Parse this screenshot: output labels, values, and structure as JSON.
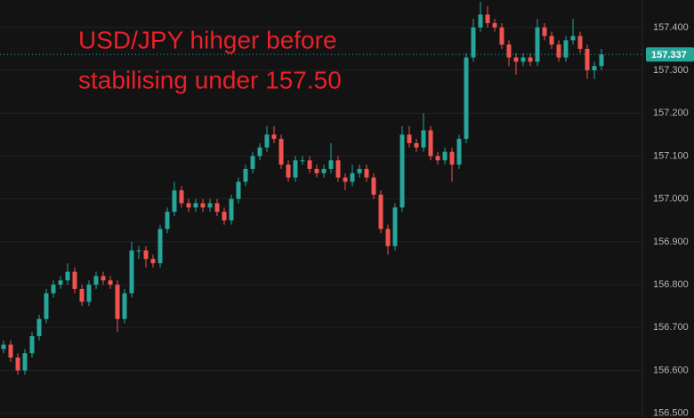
{
  "chart_data": {
    "type": "candlestick",
    "annotation_lines": [
      "USD/JPY hihger before",
      "stabilising under 157.50"
    ],
    "up_color": "#26a69a",
    "down_color": "#ef5350",
    "grid": true,
    "ylim": [
      156.489,
      157.464
    ],
    "yticks": [
      {
        "value": 156.5,
        "label": "156.500"
      },
      {
        "value": 156.6,
        "label": "156.600"
      },
      {
        "value": 156.7,
        "label": "156.700"
      },
      {
        "value": 156.8,
        "label": "156.800"
      },
      {
        "value": 156.9,
        "label": "156.900"
      },
      {
        "value": 157.0,
        "label": "157.000"
      },
      {
        "value": 157.1,
        "label": "157.100"
      },
      {
        "value": 157.2,
        "label": "157.200"
      },
      {
        "value": 157.3,
        "label": "157.300"
      },
      {
        "value": 157.4,
        "label": "157.400"
      }
    ],
    "open": [
      156.65,
      156.66,
      156.63,
      156.6,
      156.64,
      156.68,
      156.72,
      156.78,
      156.8,
      156.81,
      156.83,
      156.79,
      156.76,
      156.8,
      156.82,
      156.81,
      156.8,
      156.72,
      156.78,
      156.88,
      156.88,
      156.86,
      156.85,
      156.93,
      156.97,
      157.02,
      156.99,
      156.98,
      156.99,
      156.98,
      156.99,
      156.97,
      156.95,
      157.0,
      157.04,
      157.07,
      157.1,
      157.12,
      157.15,
      157.14,
      157.08,
      157.05,
      157.09,
      157.09,
      157.07,
      157.06,
      157.07,
      157.09,
      157.05,
      157.04,
      157.06,
      157.07,
      157.05,
      157.01,
      156.93,
      156.89,
      156.98,
      157.15,
      157.13,
      157.12,
      157.16,
      157.1,
      157.09,
      157.11,
      157.08,
      157.14,
      157.33,
      157.4,
      157.43,
      157.41,
      157.4,
      157.36,
      157.33,
      157.32,
      157.33,
      157.32,
      157.4,
      157.38,
      157.36,
      157.33,
      157.37,
      157.38,
      157.35,
      157.3,
      157.31
    ],
    "high": [
      156.67,
      156.67,
      156.64,
      156.65,
      156.69,
      156.73,
      156.79,
      156.81,
      156.82,
      156.85,
      156.84,
      156.8,
      156.81,
      156.83,
      156.83,
      156.82,
      156.81,
      156.79,
      156.9,
      156.89,
      156.89,
      156.87,
      156.94,
      156.98,
      157.04,
      157.03,
      157.0,
      157.0,
      157.0,
      157.0,
      157.0,
      156.98,
      157.01,
      157.05,
      157.08,
      157.11,
      157.13,
      157.17,
      157.17,
      157.15,
      157.09,
      157.1,
      157.1,
      157.1,
      157.08,
      157.08,
      157.13,
      157.1,
      157.06,
      157.08,
      157.08,
      157.08,
      157.06,
      157.02,
      156.94,
      156.99,
      157.17,
      157.17,
      157.14,
      157.2,
      157.17,
      157.11,
      157.12,
      157.12,
      157.15,
      157.34,
      157.42,
      157.46,
      157.45,
      157.42,
      157.41,
      157.37,
      157.34,
      157.34,
      157.34,
      157.42,
      157.41,
      157.39,
      157.37,
      157.38,
      157.42,
      157.39,
      157.36,
      157.32,
      157.35
    ],
    "low": [
      156.64,
      156.62,
      156.59,
      156.59,
      156.63,
      156.67,
      156.71,
      156.77,
      156.79,
      156.8,
      156.78,
      156.75,
      156.75,
      156.79,
      156.8,
      156.79,
      156.69,
      156.71,
      156.77,
      156.86,
      156.84,
      156.84,
      156.84,
      156.92,
      156.96,
      156.98,
      156.97,
      156.97,
      156.97,
      156.97,
      156.96,
      156.94,
      156.94,
      156.99,
      157.03,
      157.06,
      157.09,
      157.11,
      157.13,
      157.07,
      157.04,
      157.04,
      157.08,
      157.06,
      157.05,
      157.05,
      157.06,
      157.04,
      157.02,
      157.03,
      157.05,
      157.04,
      157.0,
      156.92,
      156.87,
      156.88,
      156.97,
      157.12,
      157.11,
      157.11,
      157.09,
      157.08,
      157.08,
      157.04,
      157.07,
      157.13,
      157.32,
      157.39,
      157.4,
      157.39,
      157.35,
      157.31,
      157.29,
      157.31,
      157.31,
      157.31,
      157.37,
      157.35,
      157.32,
      157.32,
      157.36,
      157.34,
      157.28,
      157.28,
      157.3
    ],
    "close": [
      156.66,
      156.63,
      156.6,
      156.64,
      156.68,
      156.72,
      156.78,
      156.8,
      156.81,
      156.83,
      156.79,
      156.76,
      156.8,
      156.82,
      156.81,
      156.8,
      156.72,
      156.78,
      156.88,
      156.88,
      156.86,
      156.85,
      156.93,
      156.97,
      157.02,
      156.99,
      156.98,
      156.99,
      156.98,
      156.99,
      156.97,
      156.95,
      157.0,
      157.04,
      157.07,
      157.1,
      157.12,
      157.15,
      157.14,
      157.08,
      157.05,
      157.09,
      157.09,
      157.07,
      157.06,
      157.07,
      157.09,
      157.05,
      157.04,
      157.06,
      157.07,
      157.05,
      157.01,
      156.93,
      156.89,
      156.98,
      157.15,
      157.13,
      157.12,
      157.16,
      157.1,
      157.09,
      157.11,
      157.08,
      157.14,
      157.33,
      157.4,
      157.43,
      157.41,
      157.4,
      157.36,
      157.33,
      157.32,
      157.33,
      157.32,
      157.4,
      157.38,
      157.36,
      157.33,
      157.37,
      157.38,
      157.35,
      157.3,
      157.31,
      157.337
    ]
  }
}
